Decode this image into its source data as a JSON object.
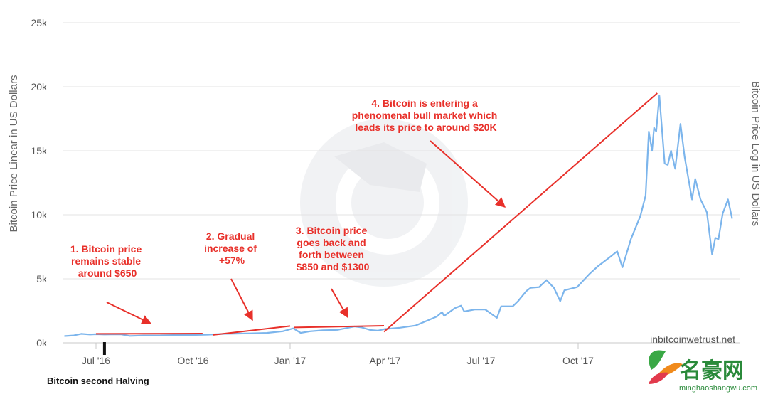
{
  "chart_data": {
    "type": "line",
    "y_axis_left_title": "Bitcoin Price Linear in US Dollars",
    "y_axis_right_title": "Bitcoin Price Log in US Dollars",
    "y_ticks": [
      {
        "value": 0,
        "label": "0k"
      },
      {
        "value": 5000,
        "label": "5k"
      },
      {
        "value": 10000,
        "label": "10k"
      },
      {
        "value": 15000,
        "label": "15k"
      },
      {
        "value": 20000,
        "label": "20k"
      },
      {
        "value": 25000,
        "label": "25k"
      }
    ],
    "x_ticks": [
      {
        "date": "2016-07-01",
        "label": "Jul '16"
      },
      {
        "date": "2016-10-01",
        "label": "Oct '16"
      },
      {
        "date": "2017-01-01",
        "label": "Jan '17"
      },
      {
        "date": "2017-04-01",
        "label": "Apr '17"
      },
      {
        "date": "2017-07-01",
        "label": "Jul '17"
      },
      {
        "date": "2017-10-01",
        "label": "Oct '17"
      }
    ],
    "ylim": [
      0,
      25000
    ],
    "xlim": [
      "2016-06-01",
      "2018-02-24"
    ],
    "grid": true,
    "series_color": "#7cb5ec",
    "annotation_color": "#e8302a",
    "series": [
      {
        "points": [
          [
            "2016-06-01",
            530
          ],
          [
            "2016-06-10",
            580
          ],
          [
            "2016-06-17",
            700
          ],
          [
            "2016-06-25",
            650
          ],
          [
            "2016-07-01",
            670
          ],
          [
            "2016-07-09",
            650
          ],
          [
            "2016-07-15",
            660
          ],
          [
            "2016-07-25",
            655
          ],
          [
            "2016-08-02",
            540
          ],
          [
            "2016-08-15",
            570
          ],
          [
            "2016-08-31",
            575
          ],
          [
            "2016-09-15",
            610
          ],
          [
            "2016-09-30",
            610
          ],
          [
            "2016-10-15",
            640
          ],
          [
            "2016-10-31",
            700
          ],
          [
            "2016-11-10",
            715
          ],
          [
            "2016-11-25",
            740
          ],
          [
            "2016-12-10",
            770
          ],
          [
            "2016-12-25",
            900
          ],
          [
            "2017-01-04",
            1130
          ],
          [
            "2017-01-11",
            780
          ],
          [
            "2017-01-20",
            900
          ],
          [
            "2017-02-01",
            980
          ],
          [
            "2017-02-15",
            1010
          ],
          [
            "2017-02-25",
            1180
          ],
          [
            "2017-03-03",
            1280
          ],
          [
            "2017-03-10",
            1200
          ],
          [
            "2017-03-18",
            1000
          ],
          [
            "2017-03-25",
            950
          ],
          [
            "2017-04-01",
            1080
          ],
          [
            "2017-04-15",
            1180
          ],
          [
            "2017-04-30",
            1350
          ],
          [
            "2017-05-10",
            1700
          ],
          [
            "2017-05-20",
            2050
          ],
          [
            "2017-05-25",
            2400
          ],
          [
            "2017-05-27",
            2100
          ],
          [
            "2017-06-06",
            2700
          ],
          [
            "2017-06-12",
            2900
          ],
          [
            "2017-06-15",
            2450
          ],
          [
            "2017-06-25",
            2600
          ],
          [
            "2017-07-05",
            2600
          ],
          [
            "2017-07-16",
            1950
          ],
          [
            "2017-07-20",
            2850
          ],
          [
            "2017-07-31",
            2850
          ],
          [
            "2017-08-05",
            3250
          ],
          [
            "2017-08-13",
            4050
          ],
          [
            "2017-08-17",
            4300
          ],
          [
            "2017-08-25",
            4350
          ],
          [
            "2017-09-01",
            4900
          ],
          [
            "2017-09-08",
            4300
          ],
          [
            "2017-09-14",
            3250
          ],
          [
            "2017-09-18",
            4100
          ],
          [
            "2017-09-30",
            4350
          ],
          [
            "2017-10-12",
            5400
          ],
          [
            "2017-10-20",
            6000
          ],
          [
            "2017-11-01",
            6750
          ],
          [
            "2017-11-07",
            7150
          ],
          [
            "2017-11-12",
            5900
          ],
          [
            "2017-11-20",
            8100
          ],
          [
            "2017-11-29",
            9900
          ],
          [
            "2017-12-04",
            11500
          ],
          [
            "2017-12-07",
            16500
          ],
          [
            "2017-12-10",
            15000
          ],
          [
            "2017-12-12",
            16800
          ],
          [
            "2017-12-14",
            16500
          ],
          [
            "2017-12-17",
            19300
          ],
          [
            "2017-12-22",
            14000
          ],
          [
            "2017-12-25",
            13900
          ],
          [
            "2017-12-28",
            15000
          ],
          [
            "2018-01-01",
            13600
          ],
          [
            "2018-01-06",
            17100
          ],
          [
            "2018-01-10",
            14500
          ],
          [
            "2018-01-17",
            11200
          ],
          [
            "2018-01-20",
            12800
          ],
          [
            "2018-01-25",
            11200
          ],
          [
            "2018-01-31",
            10200
          ],
          [
            "2018-02-05",
            6900
          ],
          [
            "2018-02-08",
            8200
          ],
          [
            "2018-02-11",
            8100
          ],
          [
            "2018-02-15",
            10100
          ],
          [
            "2018-02-20",
            11200
          ],
          [
            "2018-02-24",
            9700
          ]
        ]
      }
    ],
    "phase_lines": [
      {
        "start": [
          "2016-07-01",
          700
        ],
        "end": [
          "2016-10-10",
          720
        ]
      },
      {
        "start": [
          "2016-10-20",
          620
        ],
        "end": [
          "2017-01-01",
          1310
        ]
      },
      {
        "start": [
          "2017-01-05",
          1200
        ],
        "end": [
          "2017-03-31",
          1330
        ]
      },
      {
        "start": [
          "2017-03-31",
          860
        ],
        "end": [
          "2017-12-15",
          19500
        ]
      }
    ],
    "annotations": [
      {
        "id": "phase1",
        "lines": [
          "1. Bitcoin price",
          "remains stable",
          "around $650"
        ]
      },
      {
        "id": "phase2",
        "lines": [
          "2. Gradual",
          "increase of",
          "+57%"
        ]
      },
      {
        "id": "phase3",
        "lines": [
          "3. Bitcoin price",
          "goes back and",
          "forth between",
          "$850 and $1300"
        ]
      },
      {
        "id": "phase4",
        "lines": [
          "4. Bitcoin is entering a",
          "phenomenal bull market which",
          "leads its price to around $20K"
        ]
      }
    ],
    "halving_marker": {
      "date": "2016-07-09",
      "label": "Bitcoin second Halving"
    },
    "source_label": "inbitcoinwetrust.net"
  },
  "watermark": {
    "logo_text": "名豪网",
    "url": "minghaoshangwu.com"
  }
}
